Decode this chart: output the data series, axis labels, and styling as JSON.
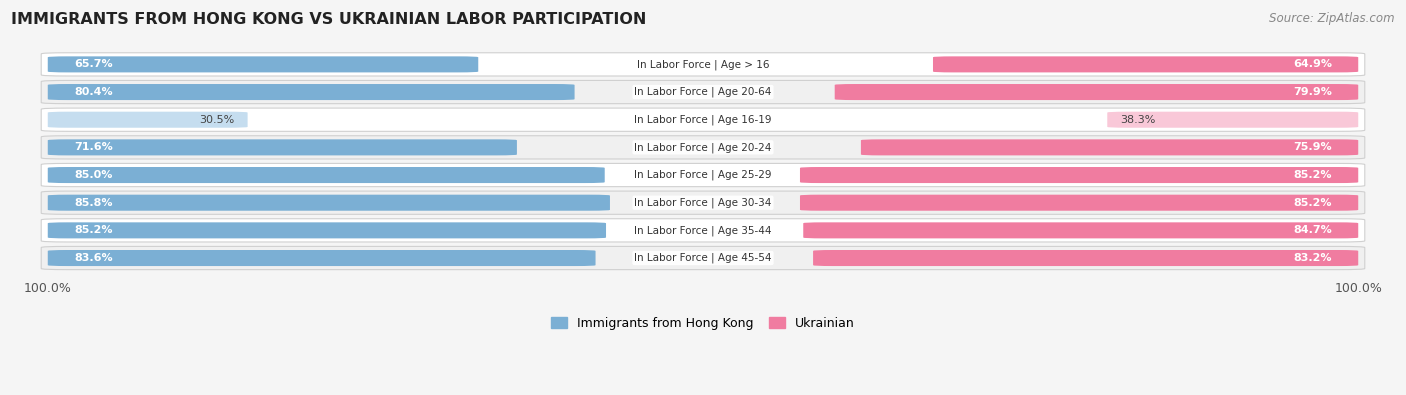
{
  "title": "IMMIGRANTS FROM HONG KONG VS UKRAINIAN LABOR PARTICIPATION",
  "source": "Source: ZipAtlas.com",
  "categories": [
    "In Labor Force | Age > 16",
    "In Labor Force | Age 20-64",
    "In Labor Force | Age 16-19",
    "In Labor Force | Age 20-24",
    "In Labor Force | Age 25-29",
    "In Labor Force | Age 30-34",
    "In Labor Force | Age 35-44",
    "In Labor Force | Age 45-54"
  ],
  "hk_values": [
    65.7,
    80.4,
    30.5,
    71.6,
    85.0,
    85.8,
    85.2,
    83.6
  ],
  "ua_values": [
    64.9,
    79.9,
    38.3,
    75.9,
    85.2,
    85.2,
    84.7,
    83.2
  ],
  "hk_color": "#7bafd4",
  "ua_color": "#f07ca0",
  "hk_color_light": "#c5ddef",
  "ua_color_light": "#f9c8d8",
  "row_bg_even": "#f0f0f0",
  "row_bg_odd": "#ffffff",
  "row_border": "#d0d0d0",
  "legend_hk": "Immigrants from Hong Kong",
  "legend_ua": "Ukrainian",
  "axis_label_left": "100.0%",
  "axis_label_right": "100.0%",
  "background_color": "#f5f5f5"
}
